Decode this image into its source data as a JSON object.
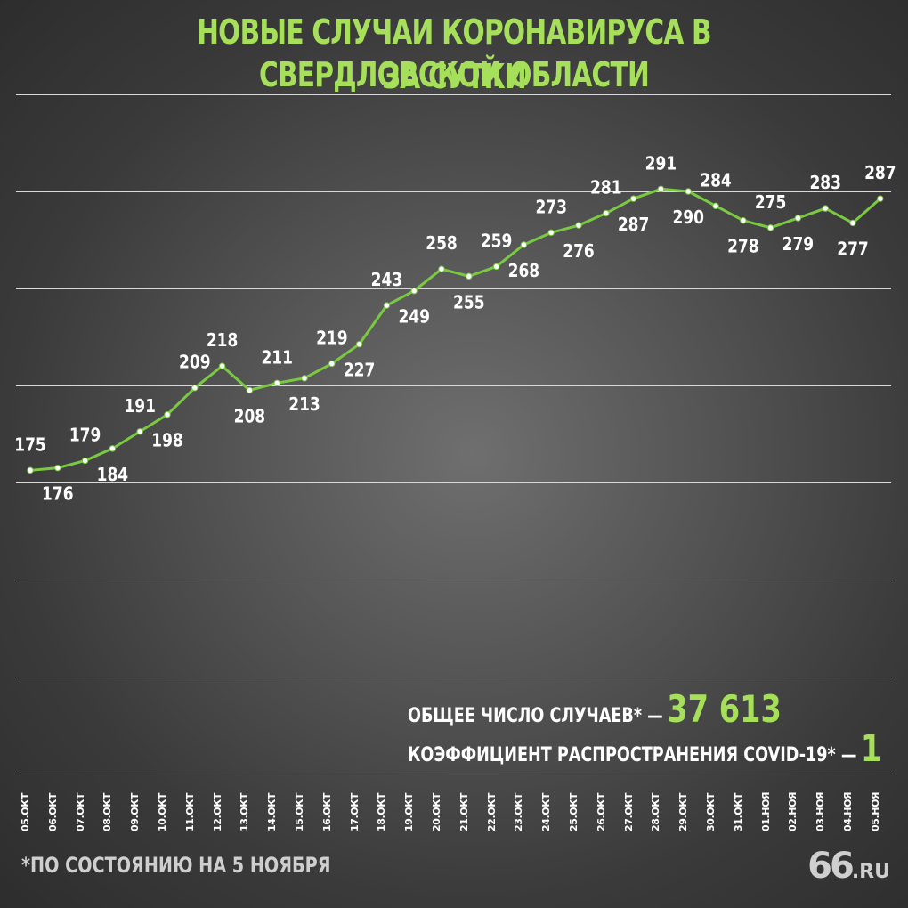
{
  "title": {
    "line1": "НОВЫЕ СЛУЧАИ КОРОНАВИРУСА В СВЕРДЛОВСКОЙ ОБЛАСТИ",
    "line2": "ЗА СУТКИ"
  },
  "stats": {
    "total_label": "ОБЩЕЕ ЧИСЛО СЛУЧАЕВ* —",
    "total_value": "37 613",
    "coef_label": "КОЭФФИЦИЕНТ РАСПРОСТРАНЕНИЯ COVID-19* —",
    "coef_value": "1"
  },
  "footnote": "*ПО СОСТОЯНИЮ НА 5 НОЯБРЯ",
  "logo": {
    "big": "66",
    "small": ".RU"
  },
  "colors": {
    "accent": "#a6e05a",
    "line": "#7ac943",
    "text": "#ffffff"
  },
  "chart_data": {
    "type": "line",
    "title": "НОВЫЕ СЛУЧАИ КОРОНАВИРУСА В СВЕРДЛОВСКОЙ ОБЛАСТИ ЗА СУТКИ",
    "categories": [
      "05.ОКТ",
      "06.ОКТ",
      "07.ОКТ",
      "08.ОКТ",
      "09.ОКТ",
      "10.ОКТ",
      "11.ОКТ",
      "12.ОКТ",
      "13.ОКТ",
      "14.ОКТ",
      "15.ОКТ",
      "16.ОКТ",
      "17.ОКТ",
      "18.ОКТ",
      "19.ОКТ",
      "20.ОКТ",
      "21.ОКТ",
      "22.ОКТ",
      "23.ОКТ",
      "24.ОКТ",
      "25.ОКТ",
      "26.ОКТ",
      "27.ОКТ",
      "28.ОКТ",
      "29.ОКТ",
      "30.ОКТ",
      "31.ОКТ",
      "01.НОЯ",
      "02.НОЯ",
      "03.НОЯ",
      "04.НОЯ",
      "05.НОЯ"
    ],
    "values": [
      175,
      176,
      179,
      184,
      191,
      198,
      209,
      218,
      208,
      211,
      213,
      219,
      227,
      243,
      249,
      258,
      255,
      259,
      268,
      273,
      276,
      281,
      287,
      291,
      290,
      284,
      278,
      275,
      279,
      283,
      277,
      287
    ],
    "label_positions": [
      "above",
      "below",
      "above",
      "below",
      "above",
      "below",
      "above",
      "above",
      "below",
      "above",
      "below",
      "above",
      "below",
      "above",
      "below",
      "above",
      "below",
      "above",
      "below",
      "above",
      "below",
      "above",
      "below",
      "above",
      "below",
      "above",
      "below",
      "above",
      "below",
      "above",
      "below",
      "above"
    ],
    "ylim": [
      50,
      330
    ],
    "grid": true,
    "legend": "none"
  }
}
